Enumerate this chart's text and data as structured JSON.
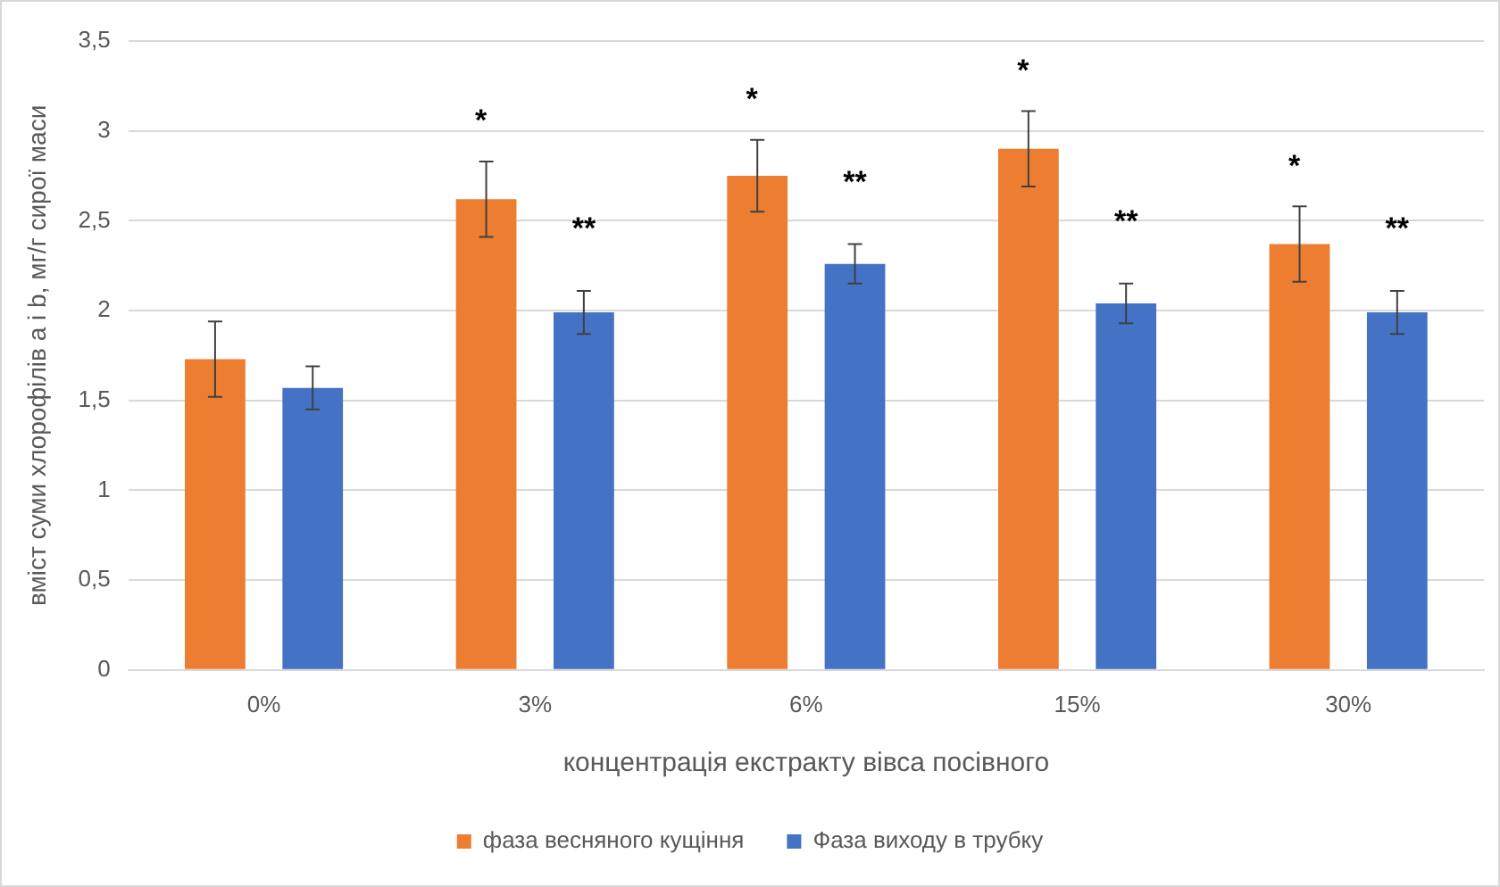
{
  "chart_data": {
    "type": "bar",
    "xlabel": "концентрація екстракту вівса посівного",
    "ylabel": "вміст суми хлорофілів a і b, мг/г сирої маси",
    "categories": [
      "0%",
      "3%",
      "6%",
      "15%",
      "30%"
    ],
    "series": [
      {
        "name": "фаза весняного кущіння",
        "color": "#ed7d31",
        "values": [
          1.73,
          2.62,
          2.75,
          2.9,
          2.37
        ],
        "errors": [
          0.21,
          0.21,
          0.2,
          0.21,
          0.21
        ]
      },
      {
        "name": "Фаза виходу в трубку",
        "color": "#4472c4",
        "values": [
          1.57,
          1.99,
          2.26,
          2.04,
          1.99
        ],
        "errors": [
          0.12,
          0.12,
          0.11,
          0.11,
          0.12
        ]
      }
    ],
    "ylim": [
      0,
      3.5
    ],
    "yticks": [
      0,
      {
        "value": 0.5,
        "label": "0,5"
      },
      1,
      {
        "value": 1.5,
        "label": "1,5"
      },
      2,
      {
        "value": 2.5,
        "label": "2,5"
      },
      3,
      {
        "value": 3.5,
        "label": "3,5"
      }
    ],
    "grid": "y",
    "legend": "bottom",
    "annotations": [
      "*",
      "*",
      "*",
      "*",
      "**",
      "**",
      "**",
      "**"
    ]
  }
}
